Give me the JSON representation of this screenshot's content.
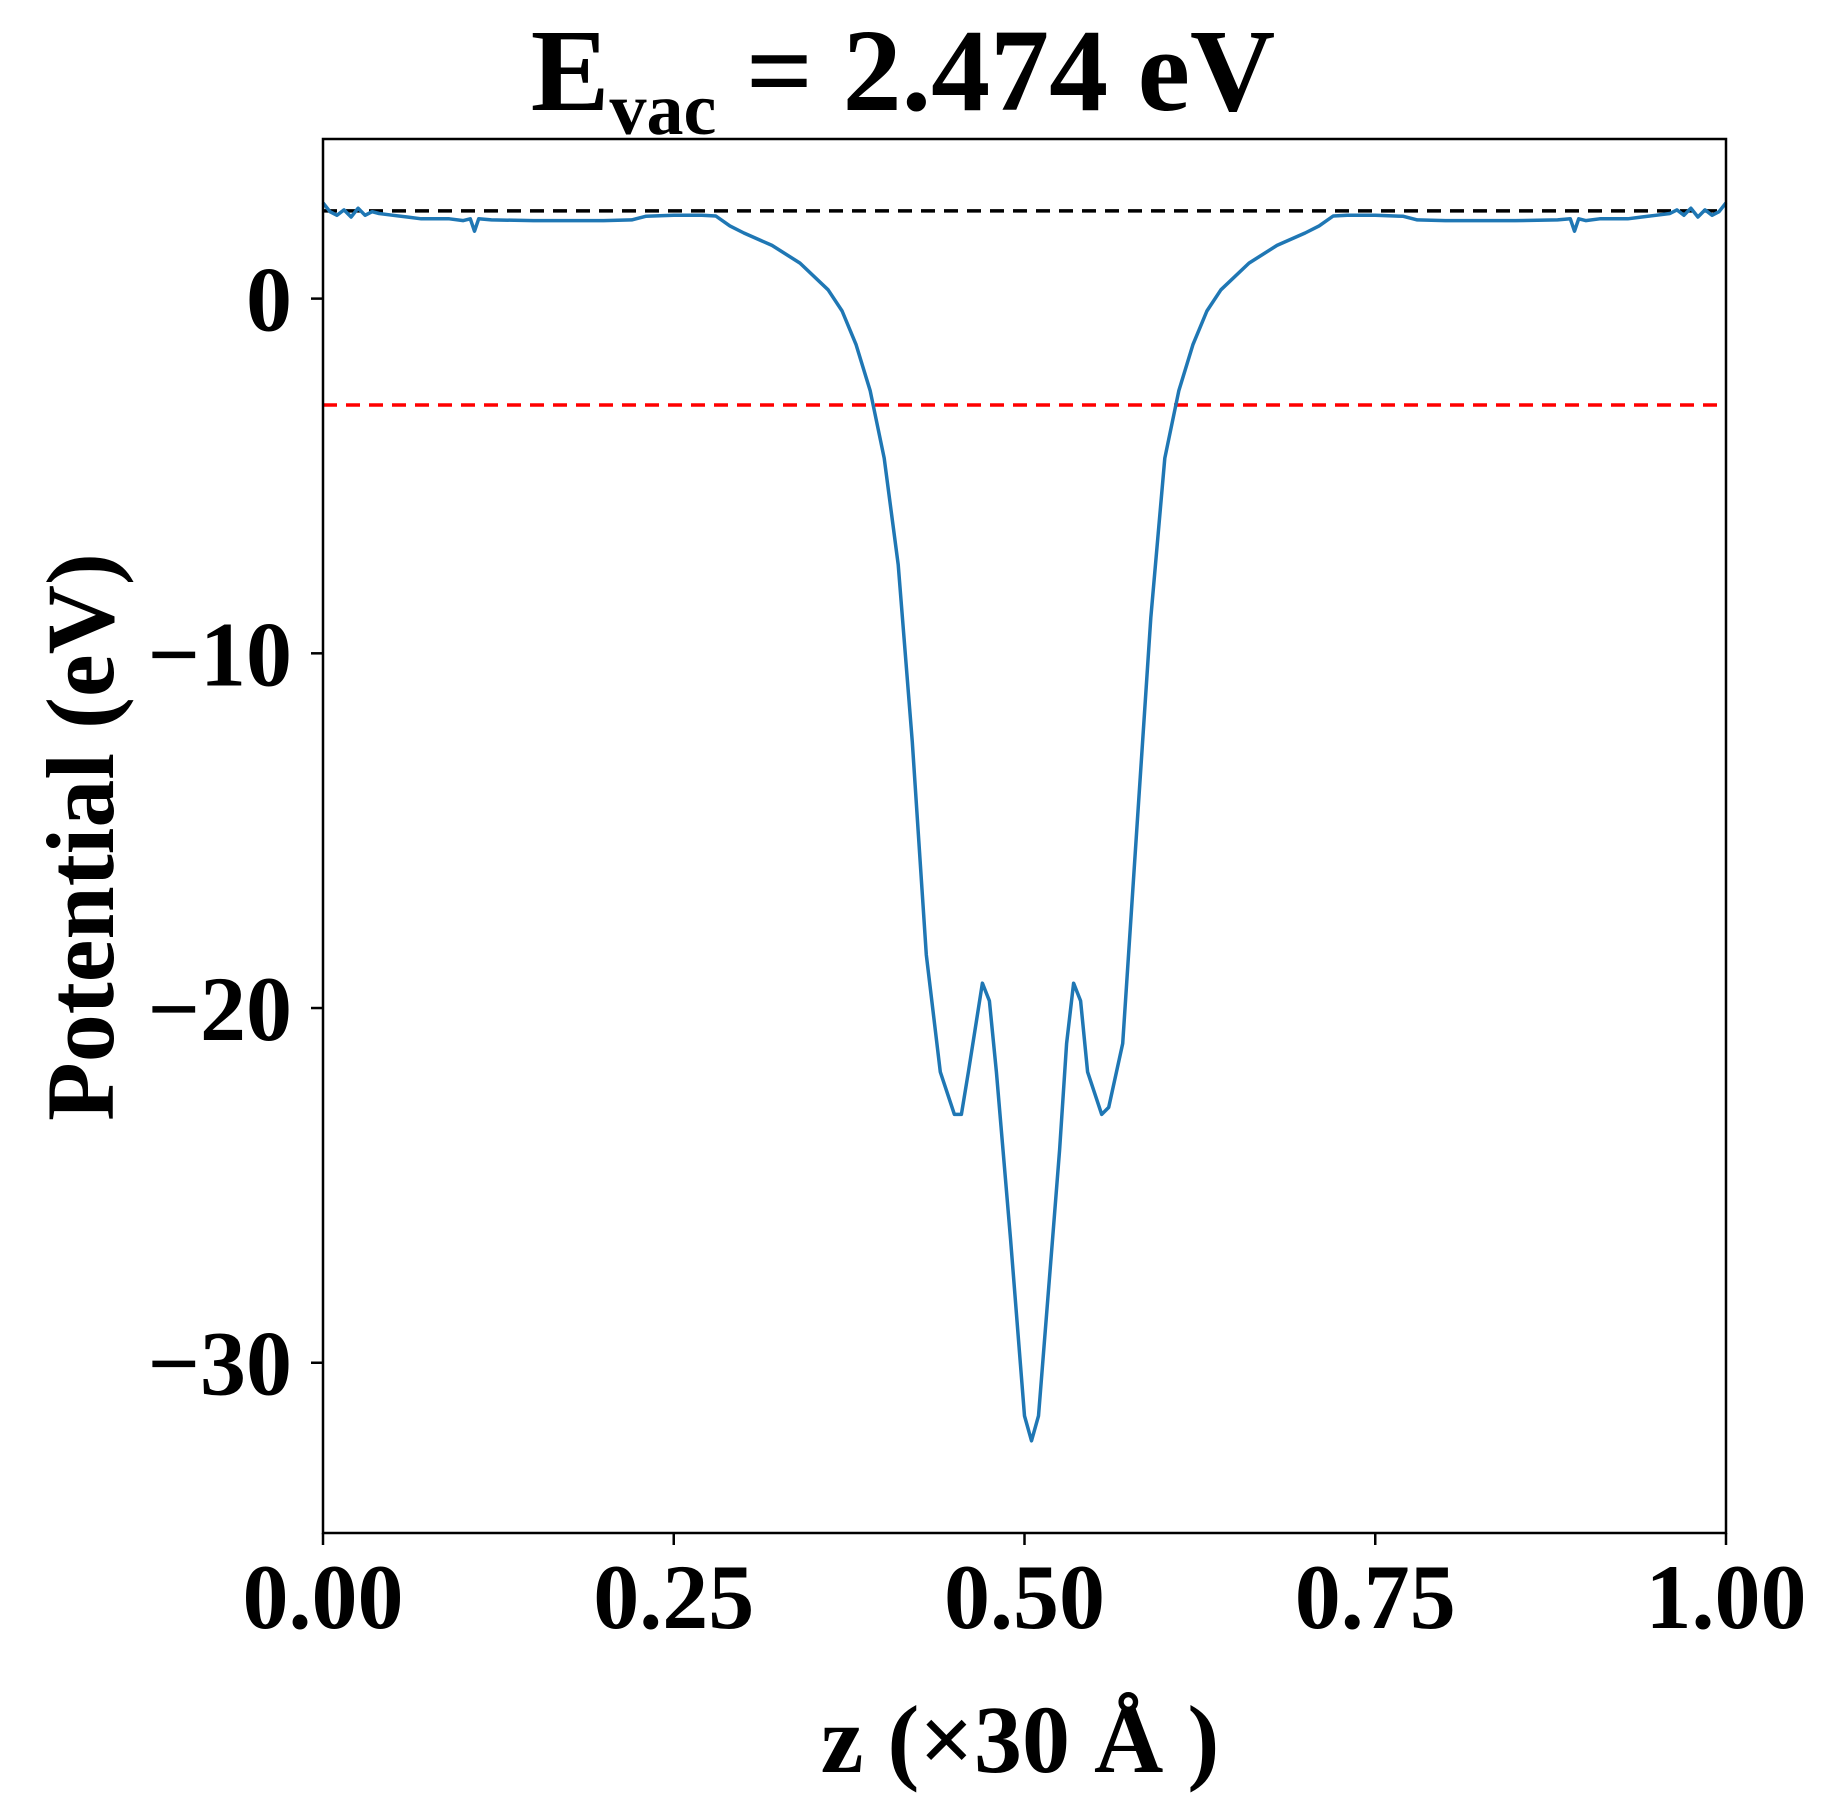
{
  "chart_data": {
    "type": "line",
    "title": {
      "main": "E",
      "sub": "vac",
      "rest": " = 2.474 eV"
    },
    "xlabel": "z (×30 Å )",
    "ylabel": "Potential (eV)",
    "xlim": [
      0,
      1
    ],
    "ylim": [
      -34.8,
      4.5
    ],
    "grid": false,
    "legend": "none",
    "x_ticks": [
      {
        "value": 0.0,
        "label": "0.00"
      },
      {
        "value": 0.25,
        "label": "0.25"
      },
      {
        "value": 0.5,
        "label": "0.50"
      },
      {
        "value": 0.75,
        "label": "0.75"
      },
      {
        "value": 1.0,
        "label": "1.00"
      }
    ],
    "y_ticks": [
      {
        "value": 0,
        "label": "0"
      },
      {
        "value": -10,
        "label": "−10"
      },
      {
        "value": -20,
        "label": "−20"
      },
      {
        "value": -30,
        "label": "−30"
      }
    ],
    "reference_lines": [
      {
        "y": 2.474,
        "color": "#000000",
        "style": "dashed"
      },
      {
        "y": -3.0,
        "color": "#ff0000",
        "style": "dashed"
      }
    ],
    "series": [
      {
        "color": "#1f77b4",
        "points": [
          [
            0.0,
            2.7
          ],
          [
            0.005,
            2.45
          ],
          [
            0.01,
            2.35
          ],
          [
            0.015,
            2.5
          ],
          [
            0.02,
            2.3
          ],
          [
            0.025,
            2.55
          ],
          [
            0.03,
            2.35
          ],
          [
            0.035,
            2.45
          ],
          [
            0.04,
            2.4
          ],
          [
            0.05,
            2.35
          ],
          [
            0.06,
            2.3
          ],
          [
            0.07,
            2.25
          ],
          [
            0.08,
            2.25
          ],
          [
            0.09,
            2.25
          ],
          [
            0.1,
            2.2
          ],
          [
            0.105,
            2.25
          ],
          [
            0.108,
            1.9
          ],
          [
            0.111,
            2.25
          ],
          [
            0.12,
            2.22
          ],
          [
            0.15,
            2.2
          ],
          [
            0.2,
            2.2
          ],
          [
            0.22,
            2.22
          ],
          [
            0.23,
            2.32
          ],
          [
            0.25,
            2.35
          ],
          [
            0.27,
            2.35
          ],
          [
            0.28,
            2.33
          ],
          [
            0.29,
            2.05
          ],
          [
            0.3,
            1.85
          ],
          [
            0.32,
            1.5
          ],
          [
            0.34,
            1.0
          ],
          [
            0.36,
            0.25
          ],
          [
            0.37,
            -0.35
          ],
          [
            0.38,
            -1.3
          ],
          [
            0.39,
            -2.6
          ],
          [
            0.4,
            -4.5
          ],
          [
            0.41,
            -7.5
          ],
          [
            0.42,
            -12.5
          ],
          [
            0.43,
            -18.5
          ],
          [
            0.44,
            -21.8
          ],
          [
            0.45,
            -23.0
          ],
          [
            0.455,
            -23.0
          ],
          [
            0.46,
            -21.8
          ],
          [
            0.47,
            -19.3
          ],
          [
            0.475,
            -19.8
          ],
          [
            0.48,
            -21.8
          ],
          [
            0.49,
            -26.5
          ],
          [
            0.5,
            -31.5
          ],
          [
            0.505,
            -32.2
          ],
          [
            0.51,
            -31.5
          ],
          [
            0.52,
            -26.5
          ],
          [
            0.525,
            -24.0
          ],
          [
            0.53,
            -21.0
          ],
          [
            0.535,
            -19.3
          ],
          [
            0.54,
            -19.8
          ],
          [
            0.545,
            -21.8
          ],
          [
            0.555,
            -23.0
          ],
          [
            0.56,
            -22.8
          ],
          [
            0.57,
            -21.0
          ],
          [
            0.58,
            -15.0
          ],
          [
            0.59,
            -9.0
          ],
          [
            0.6,
            -4.5
          ],
          [
            0.61,
            -2.6
          ],
          [
            0.62,
            -1.3
          ],
          [
            0.63,
            -0.35
          ],
          [
            0.64,
            0.25
          ],
          [
            0.66,
            1.0
          ],
          [
            0.68,
            1.5
          ],
          [
            0.7,
            1.85
          ],
          [
            0.71,
            2.05
          ],
          [
            0.72,
            2.33
          ],
          [
            0.73,
            2.35
          ],
          [
            0.75,
            2.35
          ],
          [
            0.77,
            2.32
          ],
          [
            0.78,
            2.22
          ],
          [
            0.8,
            2.2
          ],
          [
            0.85,
            2.2
          ],
          [
            0.88,
            2.22
          ],
          [
            0.889,
            2.25
          ],
          [
            0.892,
            1.9
          ],
          [
            0.895,
            2.25
          ],
          [
            0.9,
            2.2
          ],
          [
            0.91,
            2.25
          ],
          [
            0.92,
            2.25
          ],
          [
            0.93,
            2.25
          ],
          [
            0.94,
            2.3
          ],
          [
            0.95,
            2.35
          ],
          [
            0.96,
            2.4
          ],
          [
            0.965,
            2.5
          ],
          [
            0.97,
            2.35
          ],
          [
            0.975,
            2.55
          ],
          [
            0.98,
            2.3
          ],
          [
            0.985,
            2.5
          ],
          [
            0.99,
            2.35
          ],
          [
            0.995,
            2.45
          ],
          [
            1.0,
            2.7
          ]
        ]
      }
    ]
  }
}
